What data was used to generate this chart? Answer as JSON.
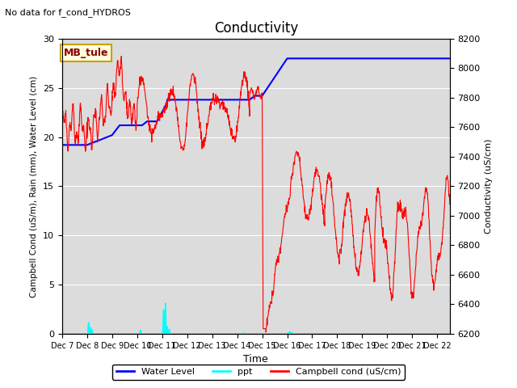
{
  "title": "Conductivity",
  "top_left_text": "No data for f_cond_HYDROS",
  "box_label": "MB_tule",
  "xlabel": "Time",
  "ylabel_left": "Campbell Cond (uS/m), Rain (mm), Water Level (cm)",
  "ylabel_right": "Conductivity (uS/cm)",
  "ylim_left": [
    0,
    30
  ],
  "ylim_right": [
    6200,
    8200
  ],
  "bg_color": "#dcdcdc",
  "fig_color": "#ffffff",
  "legend_entries": [
    "Water Level",
    "ppt",
    "Campbell cond (uS/cm)"
  ],
  "legend_colors": [
    "blue",
    "cyan",
    "red"
  ],
  "x_tick_labels": [
    "Dec 7",
    "Dec 8",
    "Dec 9",
    "Dec 10",
    "Dec 11",
    "Dec 12",
    "Dec 13",
    "Dec 14",
    "Dec 15",
    "Dec 16",
    "Dec 17",
    "Dec 18",
    "Dec 19",
    "Dec 20",
    "Dec 21",
    "Dec 22"
  ]
}
